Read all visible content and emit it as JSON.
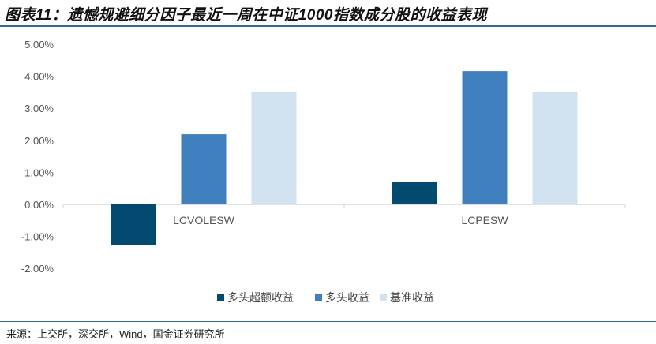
{
  "title": "图表11：遗憾规避细分因子最近一周在中证1000指数成分股的收益表现",
  "source": "来源：上交所，深交所，Wind，国金证券研究所",
  "chart_data": {
    "type": "bar",
    "categories": [
      "LCVOLESW",
      "LCPESW"
    ],
    "series": [
      {
        "name": "多头超额收益",
        "color": "#034a70",
        "values": [
          -1.28,
          0.69
        ]
      },
      {
        "name": "多头收益",
        "color": "#3f7fbd",
        "values": [
          2.19,
          4.16
        ]
      },
      {
        "name": "基准收益",
        "color": "#d1e2f1",
        "values": [
          3.5,
          3.5
        ]
      }
    ],
    "ylim": [
      -2,
      5
    ],
    "yticks": [
      "-2.00%",
      "-1.00%",
      "0.00%",
      "1.00%",
      "2.00%",
      "3.00%",
      "4.00%",
      "5.00%"
    ],
    "legend_position": "bottom"
  }
}
